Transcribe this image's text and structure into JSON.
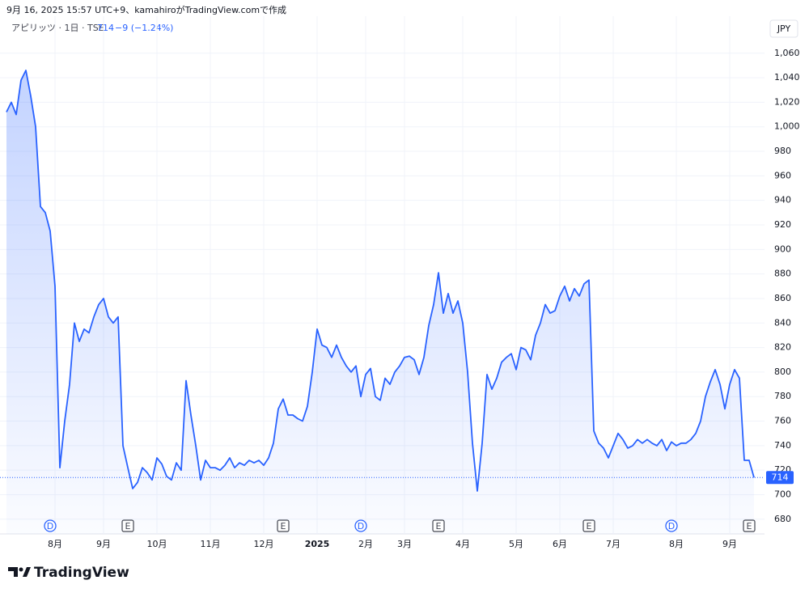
{
  "caption": "9月 16, 2025 15:57 UTC+9、kamahiroがTradingView.comで作成",
  "brand": "TradingView",
  "chart_data": {
    "type": "area",
    "title": "アピリッツ · 1日 · TSE",
    "last_price": 714,
    "change": "−9 (−1.24%)",
    "currency": "JPY",
    "color": "#2962ff",
    "grid": true,
    "categories": [
      null,
      null,
      null,
      null,
      null,
      null,
      null,
      null,
      null,
      null,
      "8月",
      null,
      null,
      null,
      null,
      null,
      null,
      null,
      null,
      null,
      "9月",
      null,
      null,
      null,
      null,
      null,
      null,
      null,
      null,
      null,
      null,
      "10月",
      null,
      null,
      null,
      null,
      null,
      null,
      null,
      null,
      null,
      null,
      "11月",
      null,
      null,
      null,
      null,
      null,
      null,
      null,
      null,
      null,
      null,
      "12月",
      null,
      null,
      null,
      null,
      null,
      null,
      null,
      null,
      null,
      null,
      "2025",
      null,
      null,
      null,
      null,
      null,
      null,
      null,
      null,
      null,
      "2月",
      null,
      null,
      null,
      null,
      null,
      null,
      null,
      "3月",
      null,
      null,
      null,
      null,
      null,
      null,
      null,
      null,
      null,
      null,
      null,
      "4月",
      null,
      null,
      null,
      null,
      null,
      null,
      null,
      null,
      null,
      null,
      "5月",
      null,
      null,
      null,
      null,
      null,
      null,
      null,
      null,
      "6月",
      null,
      null,
      null,
      null,
      null,
      null,
      null,
      null,
      null,
      null,
      "7月",
      null,
      null,
      null,
      null,
      null,
      null,
      null,
      null,
      null,
      null,
      null,
      null,
      "8月",
      null,
      null,
      null,
      null,
      null,
      null,
      null,
      null,
      null,
      null,
      "9月",
      null,
      null,
      null,
      null,
      null
    ],
    "values": [
      1012,
      1020,
      1010,
      1038,
      1046,
      1025,
      1000,
      935,
      930,
      915,
      870,
      722,
      760,
      790,
      840,
      825,
      835,
      832,
      845,
      855,
      860,
      845,
      840,
      845,
      740,
      722,
      705,
      710,
      722,
      718,
      712,
      730,
      725,
      715,
      712,
      726,
      720,
      793,
      765,
      740,
      712,
      728,
      722,
      722,
      720,
      724,
      730,
      722,
      726,
      724,
      728,
      726,
      728,
      724,
      730,
      742,
      770,
      778,
      765,
      765,
      762,
      760,
      772,
      800,
      835,
      822,
      820,
      812,
      822,
      812,
      805,
      800,
      805,
      780,
      798,
      803,
      780,
      777,
      795,
      790,
      800,
      805,
      812,
      813,
      810,
      798,
      812,
      838,
      855,
      881,
      848,
      864,
      848,
      858,
      840,
      800,
      742,
      703,
      742,
      798,
      786,
      795,
      808,
      812,
      815,
      802,
      820,
      818,
      810,
      830,
      840,
      855,
      848,
      850,
      862,
      870,
      858,
      868,
      862,
      872,
      875,
      752,
      742,
      738,
      730,
      740,
      750,
      745,
      738,
      740,
      745,
      742,
      745,
      742,
      740,
      745,
      736,
      743,
      740,
      742,
      742,
      745,
      750,
      760,
      780,
      792,
      802,
      790,
      770,
      790,
      802,
      795,
      728,
      728,
      714
    ],
    "events": [
      {
        "label": "D",
        "index": 9
      },
      {
        "label": "E",
        "index": 25
      },
      {
        "label": "E",
        "index": 57
      },
      {
        "label": "D",
        "index": 73
      },
      {
        "label": "E",
        "index": 89
      },
      {
        "label": "E",
        "index": 120
      },
      {
        "label": "D",
        "index": 137
      },
      {
        "label": "E",
        "index": 153
      }
    ],
    "ylim": [
      668,
      1077
    ],
    "yticks": [
      680,
      700,
      720,
      740,
      760,
      780,
      800,
      820,
      840,
      860,
      880,
      900,
      920,
      940,
      960,
      980,
      {
        "value": 1000,
        "label": "1,000"
      },
      {
        "value": 1020,
        "label": "1,020"
      },
      {
        "value": 1040,
        "label": "1,040"
      },
      {
        "value": 1060,
        "label": "1,060"
      }
    ]
  }
}
